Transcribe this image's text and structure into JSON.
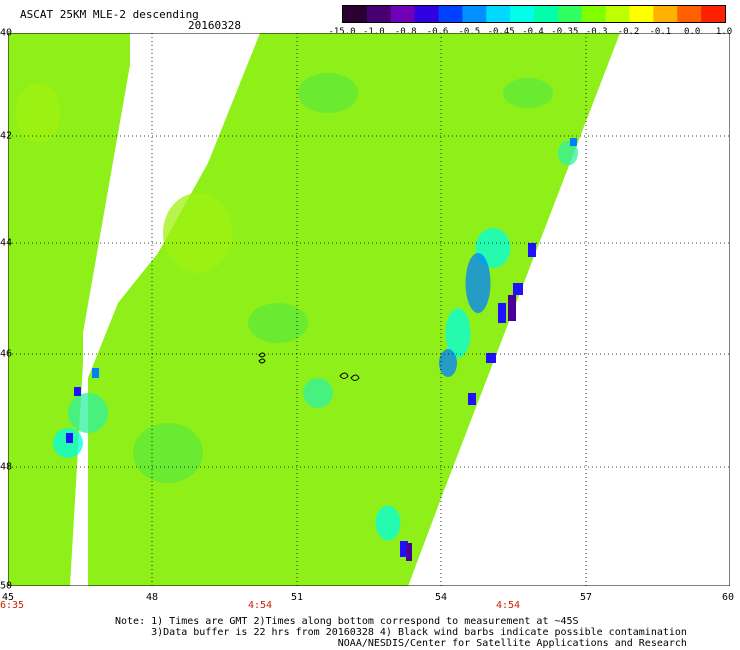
{
  "header": {
    "title": "ASCAT 25KM MLE-2 descending",
    "date": "20160328"
  },
  "colorbar": {
    "colors": [
      "#2a0030",
      "#480070",
      "#7000b8",
      "#3000e0",
      "#0040ff",
      "#0090ff",
      "#00d8ff",
      "#00ffe8",
      "#00ffaa",
      "#30ff60",
      "#80ff00",
      "#c0ff00",
      "#ffff00",
      "#ffb000",
      "#ff6000",
      "#ff2000"
    ],
    "labels": [
      "-15.0",
      "-1.0",
      "-0.8",
      "-0.6",
      "-0.5",
      "-0.45",
      "-0.4",
      "-0.35",
      "-0.3",
      "-0.2",
      "-0.1",
      "0.0",
      "1.0"
    ]
  },
  "map": {
    "lat_labels": [
      "40",
      "42",
      "44",
      "46",
      "48",
      "50"
    ],
    "lon_labels": [
      "45",
      "48",
      "51",
      "54",
      "57",
      "60"
    ],
    "time_labels": [
      "6:35",
      "4:54",
      "4:54"
    ],
    "palette": {
      "green": "#8ef018",
      "green_light": "#9ff210",
      "green_dark": "#5ee83a",
      "cyan": "#00ffe0",
      "teal": "#30f0a0",
      "blue": "#0080ff",
      "deep_blue": "#2010ff",
      "purple": "#4a0098"
    }
  },
  "footer": {
    "note_line1": "Note: 1) Times are GMT 2)Times along bottom correspond to measurement at ~45S",
    "note_line2": "      3)Data buffer is 22 hrs from 20160328 4) Black wind barbs indicate possible contamination",
    "note_line3": "                                     NOAA/NESDIS/Center for Satellite Applications and Research"
  }
}
